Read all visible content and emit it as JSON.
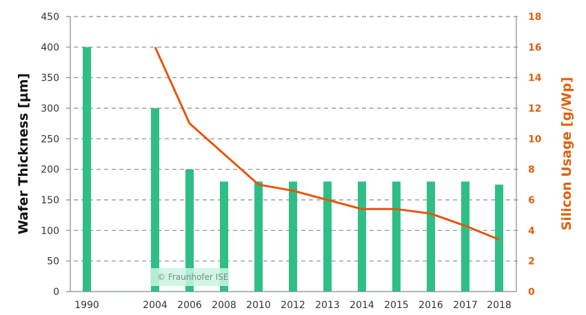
{
  "chart_data": {
    "type": "bar+line",
    "title": "",
    "categories": [
      "1990",
      "2004",
      "2006",
      "2008",
      "2010",
      "2012",
      "2013",
      "2014",
      "2015",
      "2016",
      "2017",
      "2018"
    ],
    "series": [
      {
        "name": "Wafer Thickness",
        "type": "bar",
        "axis": "left",
        "color": "#2fbf86",
        "values": [
          400,
          300,
          200,
          180,
          180,
          180,
          180,
          180,
          180,
          180,
          180,
          175
        ]
      },
      {
        "name": "Silicon Usage",
        "type": "line",
        "axis": "right",
        "color": "#e8540a",
        "values": [
          null,
          16,
          11,
          9,
          7,
          6.6,
          6,
          5.4,
          5.4,
          5.1,
          4.3,
          3.4
        ]
      }
    ],
    "ylabel": "Wafer Thickness [µm]",
    "y2label": "Silicon Usage [g/Wp]",
    "xlabel": "",
    "ylim": [
      0,
      450
    ],
    "y2lim": [
      0,
      18
    ],
    "yticks": [
      "0",
      "50",
      "100",
      "150",
      "200",
      "250",
      "300",
      "350",
      "400",
      "450"
    ],
    "y2ticks": [
      "0",
      "2",
      "4",
      "6",
      "8",
      "10",
      "12",
      "14",
      "16",
      "18"
    ],
    "grid": true,
    "grid_style": "dashed",
    "right_axis_color": "#e0600e",
    "watermark": "© Fraunhofer ISE"
  }
}
